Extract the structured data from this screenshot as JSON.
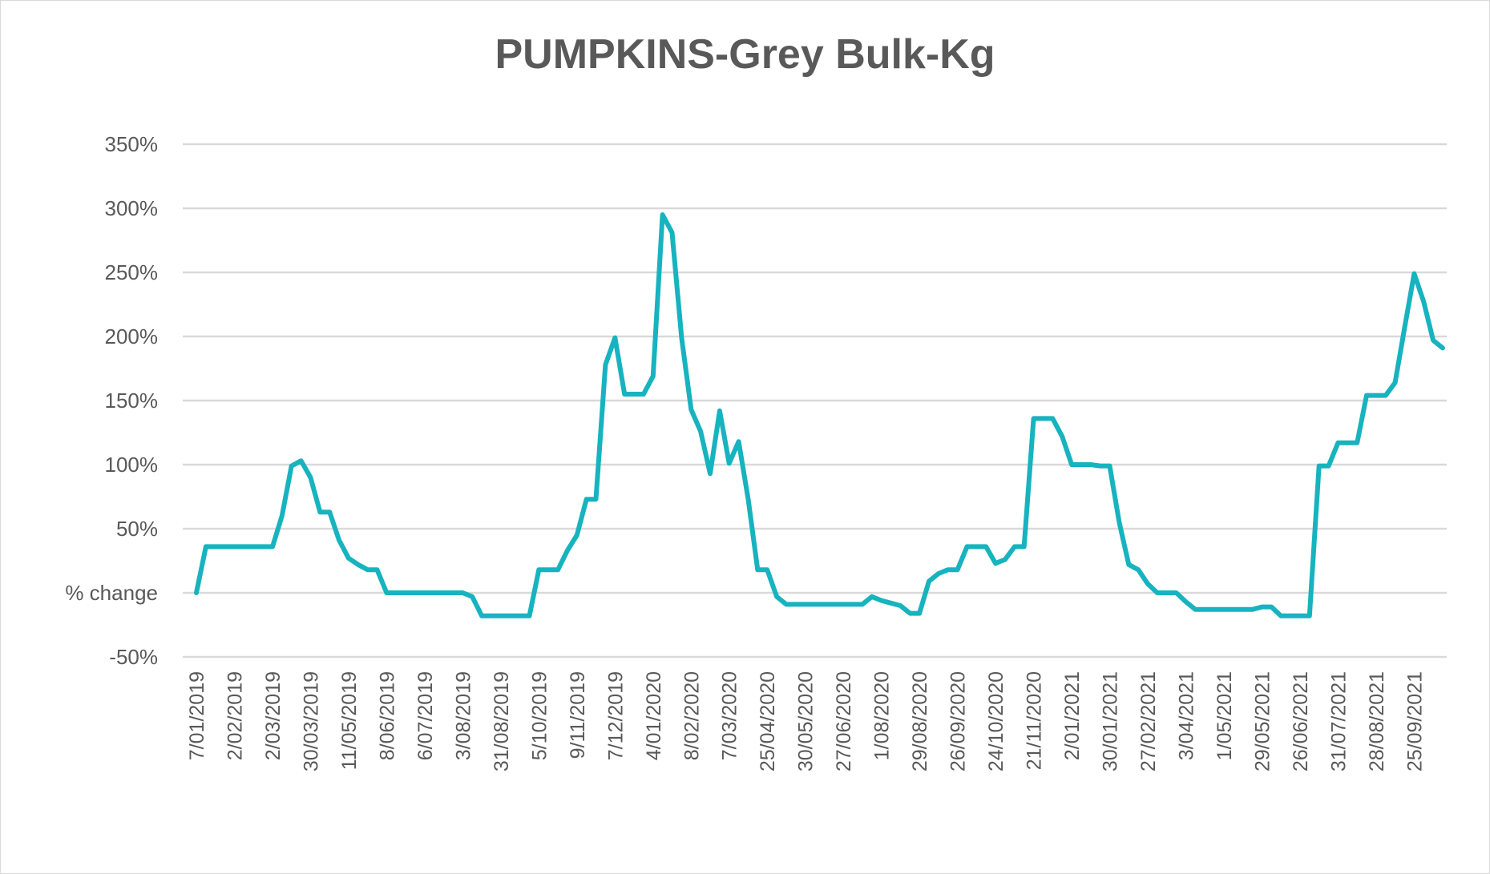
{
  "chart_data": {
    "type": "line",
    "title": "PUMPKINS-Grey Bulk-Kg",
    "xlabel": "",
    "ylabel": "",
    "ylim": [
      -50,
      350
    ],
    "grid": true,
    "legend": "none",
    "y_tick_labels": [
      "-50%",
      "% change",
      "50%",
      "100%",
      "150%",
      "200%",
      "250%",
      "300%",
      "350%"
    ],
    "y_tick_values": [
      -50,
      0,
      50,
      100,
      150,
      200,
      250,
      300,
      350
    ],
    "x_tick_labels": [
      "7/01/2019",
      "2/02/2019",
      "2/03/2019",
      "30/03/2019",
      "11/05/2019",
      "8/06/2019",
      "6/07/2019",
      "3/08/2019",
      "31/08/2019",
      "5/10/2019",
      "9/11/2019",
      "7/12/2019",
      "4/01/2020",
      "8/02/2020",
      "7/03/2020",
      "25/04/2020",
      "30/05/2020",
      "27/06/2020",
      "1/08/2020",
      "29/08/2020",
      "26/09/2020",
      "24/10/2020",
      "21/11/2020",
      "2/01/2021",
      "30/01/2021",
      "27/02/2021",
      "3/04/2021",
      "1/05/2021",
      "29/05/2021",
      "26/06/2021",
      "31/07/2021",
      "28/08/2021",
      "25/09/2021"
    ],
    "series": [
      {
        "name": "",
        "color": "#17b3bf",
        "points": [
          [
            0,
            0
          ],
          [
            1,
            36
          ],
          [
            2,
            36
          ],
          [
            3,
            36
          ],
          [
            4,
            36
          ],
          [
            5,
            36
          ],
          [
            6,
            36
          ],
          [
            7,
            36
          ],
          [
            8,
            36
          ],
          [
            9,
            60
          ],
          [
            10,
            99
          ],
          [
            11,
            103
          ],
          [
            12,
            90
          ],
          [
            13,
            63
          ],
          [
            14,
            63
          ],
          [
            15,
            41
          ],
          [
            16,
            27
          ],
          [
            17,
            22
          ],
          [
            18,
            18
          ],
          [
            19,
            18
          ],
          [
            20,
            0
          ],
          [
            21,
            0
          ],
          [
            22,
            0
          ],
          [
            23,
            0
          ],
          [
            24,
            0
          ],
          [
            25,
            0
          ],
          [
            26,
            0
          ],
          [
            27,
            0
          ],
          [
            28,
            0
          ],
          [
            29,
            -3
          ],
          [
            30,
            -18
          ],
          [
            31,
            -18
          ],
          [
            32,
            -18
          ],
          [
            33,
            -18
          ],
          [
            34,
            -18
          ],
          [
            35,
            -18
          ],
          [
            36,
            18
          ],
          [
            37,
            18
          ],
          [
            38,
            18
          ],
          [
            39,
            33
          ],
          [
            40,
            45
          ],
          [
            41,
            73
          ],
          [
            42,
            73
          ],
          [
            43,
            178
          ],
          [
            44,
            199
          ],
          [
            45,
            155
          ],
          [
            46,
            155
          ],
          [
            47,
            155
          ],
          [
            48,
            169
          ],
          [
            49,
            295
          ],
          [
            50,
            281
          ],
          [
            51,
            199
          ],
          [
            52,
            143
          ],
          [
            53,
            126
          ],
          [
            54,
            93
          ],
          [
            55,
            142
          ],
          [
            56,
            101
          ],
          [
            57,
            118
          ],
          [
            58,
            73
          ],
          [
            59,
            18
          ],
          [
            60,
            18
          ],
          [
            61,
            -3
          ],
          [
            62,
            -9
          ],
          [
            63,
            -9
          ],
          [
            64,
            -9
          ],
          [
            65,
            -9
          ],
          [
            66,
            -9
          ],
          [
            67,
            -9
          ],
          [
            68,
            -9
          ],
          [
            69,
            -9
          ],
          [
            70,
            -9
          ],
          [
            71,
            -3
          ],
          [
            72,
            -6
          ],
          [
            73,
            -8
          ],
          [
            74,
            -10
          ],
          [
            75,
            -16
          ],
          [
            76,
            -16
          ],
          [
            77,
            9
          ],
          [
            78,
            15
          ],
          [
            79,
            18
          ],
          [
            80,
            18
          ],
          [
            81,
            36
          ],
          [
            82,
            36
          ],
          [
            83,
            36
          ],
          [
            84,
            23
          ],
          [
            85,
            26
          ],
          [
            86,
            36
          ],
          [
            87,
            36
          ],
          [
            88,
            136
          ],
          [
            89,
            136
          ],
          [
            90,
            136
          ],
          [
            91,
            122
          ],
          [
            92,
            100
          ],
          [
            93,
            100
          ],
          [
            94,
            100
          ],
          [
            95,
            99
          ],
          [
            96,
            99
          ],
          [
            97,
            55
          ],
          [
            98,
            22
          ],
          [
            99,
            18
          ],
          [
            100,
            7
          ],
          [
            101,
            0
          ],
          [
            102,
            0
          ],
          [
            103,
            0
          ],
          [
            104,
            -7
          ],
          [
            105,
            -13
          ],
          [
            106,
            -13
          ],
          [
            107,
            -13
          ],
          [
            108,
            -13
          ],
          [
            109,
            -13
          ],
          [
            110,
            -13
          ],
          [
            111,
            -13
          ],
          [
            112,
            -11
          ],
          [
            113,
            -11
          ],
          [
            114,
            -18
          ],
          [
            115,
            -18
          ],
          [
            116,
            -18
          ],
          [
            117,
            -18
          ],
          [
            118,
            99
          ],
          [
            119,
            99
          ],
          [
            120,
            117
          ],
          [
            121,
            117
          ],
          [
            122,
            117
          ],
          [
            123,
            154
          ],
          [
            124,
            154
          ],
          [
            125,
            154
          ],
          [
            126,
            164
          ],
          [
            127,
            207
          ],
          [
            128,
            249
          ],
          [
            129,
            227
          ],
          [
            130,
            197
          ],
          [
            131,
            191
          ]
        ]
      }
    ],
    "x_range": [
      0,
      131
    ],
    "x_tick_positions": [
      0,
      4,
      8,
      12,
      16,
      20,
      24,
      28,
      32,
      36,
      40,
      44,
      48,
      52,
      56,
      60,
      64,
      68,
      72,
      76,
      80,
      84,
      88,
      92,
      96,
      100,
      104,
      108,
      112,
      116,
      120,
      124,
      128
    ]
  }
}
